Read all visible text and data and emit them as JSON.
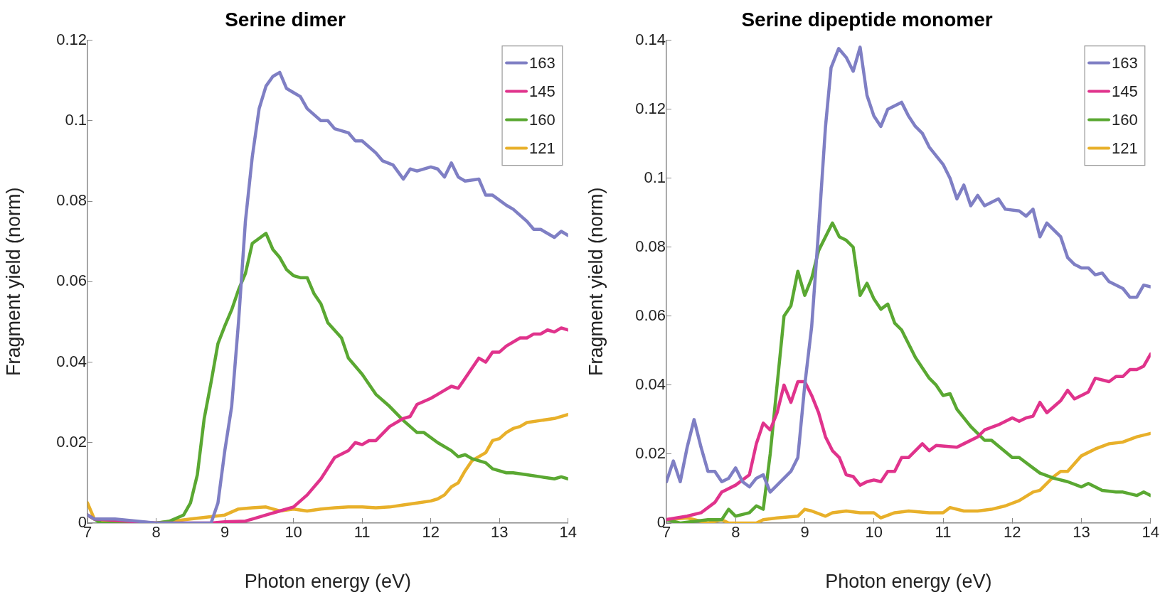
{
  "chart_data": [
    {
      "type": "line",
      "title": "Serine dimer",
      "xlabel": "Photon energy (eV)",
      "ylabel": "Fragment yield (norm)",
      "xlim": [
        7,
        14
      ],
      "xticks": [
        7,
        8,
        9,
        10,
        11,
        12,
        13,
        14
      ],
      "ylim": [
        0,
        0.12
      ],
      "yticks": [
        0,
        0.02,
        0.04,
        0.06,
        0.08,
        0.1,
        0.12
      ],
      "grid": false,
      "legend": "top right",
      "line_style": "solid",
      "series": [
        {
          "name": "163",
          "color": "#7f7fc4",
          "x": [
            7,
            7.1,
            7.4,
            8,
            8.8,
            8.9,
            9.0,
            9.1,
            9.2,
            9.3,
            9.4,
            9.5,
            9.6,
            9.7,
            9.8,
            9.9,
            10.0,
            10.1,
            10.2,
            10.4,
            10.5,
            10.6,
            10.8,
            10.9,
            11.0,
            11.2,
            11.3,
            11.45,
            11.6,
            11.7,
            11.8,
            12.0,
            12.1,
            12.2,
            12.3,
            12.4,
            12.5,
            12.7,
            12.8,
            12.9,
            13.1,
            13.2,
            13.4,
            13.5,
            13.6,
            13.8,
            13.9,
            14.0
          ],
          "values": [
            0.002,
            0.001,
            0.001,
            0,
            0,
            0.005,
            0.018,
            0.029,
            0.05,
            0.075,
            0.091,
            0.103,
            0.1086,
            0.111,
            0.112,
            0.108,
            0.107,
            0.106,
            0.103,
            0.1,
            0.1,
            0.098,
            0.097,
            0.095,
            0.095,
            0.092,
            0.09,
            0.089,
            0.0855,
            0.088,
            0.0875,
            0.0885,
            0.088,
            0.086,
            0.0895,
            0.086,
            0.085,
            0.0855,
            0.0815,
            0.0815,
            0.079,
            0.078,
            0.075,
            0.073,
            0.073,
            0.071,
            0.0725,
            0.0715
          ]
        },
        {
          "name": "145",
          "color": "#e0338c",
          "x": [
            7,
            7.1,
            8,
            8.8,
            9.0,
            9.3,
            9.4,
            9.6,
            9.8,
            10.0,
            10.2,
            10.4,
            10.6,
            10.8,
            10.9,
            11.0,
            11.1,
            11.2,
            11.4,
            11.6,
            11.7,
            11.8,
            12.0,
            12.1,
            12.2,
            12.3,
            12.4,
            12.5,
            12.7,
            12.8,
            12.9,
            13.0,
            13.1,
            13.3,
            13.4,
            13.5,
            13.6,
            13.7,
            13.8,
            13.9,
            14.0
          ],
          "values": [
            0.002,
            0.001,
            0,
            0,
            0.0003,
            0.0005,
            0.001,
            0.002,
            0.003,
            0.004,
            0.007,
            0.011,
            0.0163,
            0.018,
            0.02,
            0.0195,
            0.0205,
            0.0205,
            0.024,
            0.026,
            0.0265,
            0.0295,
            0.031,
            0.032,
            0.033,
            0.034,
            0.0335,
            0.036,
            0.041,
            0.04,
            0.0425,
            0.0425,
            0.044,
            0.046,
            0.046,
            0.047,
            0.047,
            0.048,
            0.0475,
            0.0485,
            0.048
          ]
        },
        {
          "name": "160",
          "color": "#5aa832",
          "x": [
            7,
            7.2,
            8.0,
            8.2,
            8.4,
            8.5,
            8.6,
            8.7,
            8.8,
            8.9,
            9.0,
            9.1,
            9.2,
            9.3,
            9.4,
            9.6,
            9.7,
            9.8,
            9.9,
            10.0,
            10.1,
            10.2,
            10.3,
            10.4,
            10.5,
            10.7,
            10.8,
            11.0,
            11.2,
            11.4,
            11.6,
            11.8,
            11.9,
            12.1,
            12.3,
            12.4,
            12.5,
            12.6,
            12.8,
            12.9,
            13.1,
            13.2,
            13.4,
            13.6,
            13.8,
            13.9,
            14.0
          ],
          "values": [
            0.002,
            0,
            0,
            0.0005,
            0.002,
            0.005,
            0.012,
            0.026,
            0.035,
            0.0446,
            0.049,
            0.053,
            0.058,
            0.062,
            0.0695,
            0.072,
            0.068,
            0.066,
            0.063,
            0.0615,
            0.061,
            0.061,
            0.057,
            0.0545,
            0.0498,
            0.046,
            0.041,
            0.037,
            0.032,
            0.029,
            0.0255,
            0.0225,
            0.0225,
            0.02,
            0.018,
            0.0165,
            0.017,
            0.016,
            0.015,
            0.0135,
            0.0125,
            0.0125,
            0.012,
            0.0115,
            0.011,
            0.0115,
            0.011
          ]
        },
        {
          "name": "121",
          "color": "#e8b02a",
          "x": [
            7,
            7.1,
            7.5,
            8,
            8.5,
            9.0,
            9.2,
            9.4,
            9.6,
            9.8,
            10.0,
            10.2,
            10.4,
            10.6,
            10.8,
            11.0,
            11.2,
            11.4,
            11.6,
            11.8,
            12.0,
            12.1,
            12.2,
            12.3,
            12.4,
            12.5,
            12.6,
            12.8,
            12.9,
            13.0,
            13.1,
            13.2,
            13.3,
            13.4,
            13.6,
            13.8,
            14.0
          ],
          "values": [
            0.005,
            0.001,
            0,
            0,
            0.001,
            0.002,
            0.0035,
            0.0038,
            0.004,
            0.003,
            0.0035,
            0.003,
            0.0035,
            0.0038,
            0.004,
            0.004,
            0.0038,
            0.004,
            0.0045,
            0.005,
            0.0055,
            0.006,
            0.007,
            0.009,
            0.01,
            0.013,
            0.0155,
            0.0175,
            0.0205,
            0.021,
            0.0225,
            0.0235,
            0.024,
            0.025,
            0.0255,
            0.026,
            0.027
          ]
        }
      ]
    },
    {
      "type": "line",
      "title": "Serine dipeptide monomer",
      "xlabel": "Photon energy (eV)",
      "ylabel": "Fragment yield (norm)",
      "xlim": [
        7,
        14
      ],
      "xticks": [
        7,
        8,
        9,
        10,
        11,
        12,
        13,
        14
      ],
      "ylim": [
        0,
        0.14
      ],
      "yticks": [
        0,
        0.02,
        0.04,
        0.06,
        0.08,
        0.1,
        0.12,
        0.14
      ],
      "grid": false,
      "legend": "top right",
      "line_style": "solid",
      "series": [
        {
          "name": "163",
          "color": "#7f7fc4",
          "x": [
            7.0,
            7.1,
            7.2,
            7.3,
            7.4,
            7.5,
            7.6,
            7.7,
            7.8,
            7.9,
            8.0,
            8.1,
            8.2,
            8.3,
            8.4,
            8.5,
            8.6,
            8.7,
            8.8,
            8.9,
            9.0,
            9.1,
            9.2,
            9.3,
            9.38,
            9.49,
            9.6,
            9.7,
            9.8,
            9.9,
            10.0,
            10.1,
            10.2,
            10.4,
            10.5,
            10.6,
            10.7,
            10.8,
            11.0,
            11.1,
            11.2,
            11.3,
            11.4,
            11.5,
            11.6,
            11.8,
            11.9,
            12.1,
            12.2,
            12.3,
            12.4,
            12.5,
            12.7,
            12.8,
            12.9,
            13.0,
            13.1,
            13.2,
            13.3,
            13.4,
            13.6,
            13.7,
            13.8,
            13.9,
            14.0
          ],
          "values": [
            0.012,
            0.018,
            0.012,
            0.022,
            0.03,
            0.022,
            0.015,
            0.015,
            0.012,
            0.013,
            0.016,
            0.012,
            0.0105,
            0.013,
            0.014,
            0.009,
            0.011,
            0.013,
            0.015,
            0.019,
            0.04,
            0.057,
            0.085,
            0.115,
            0.132,
            0.1376,
            0.135,
            0.131,
            0.138,
            0.124,
            0.118,
            0.115,
            0.12,
            0.122,
            0.118,
            0.115,
            0.113,
            0.109,
            0.104,
            0.1,
            0.094,
            0.098,
            0.092,
            0.095,
            0.092,
            0.094,
            0.091,
            0.0905,
            0.089,
            0.091,
            0.083,
            0.087,
            0.083,
            0.077,
            0.075,
            0.074,
            0.074,
            0.072,
            0.0725,
            0.07,
            0.068,
            0.0655,
            0.0655,
            0.069,
            0.0685
          ]
        },
        {
          "name": "145",
          "color": "#e0338c",
          "x": [
            7.0,
            7.3,
            7.5,
            7.7,
            7.8,
            8.0,
            8.2,
            8.3,
            8.4,
            8.5,
            8.6,
            8.7,
            8.8,
            8.9,
            9.0,
            9.1,
            9.2,
            9.3,
            9.4,
            9.5,
            9.6,
            9.7,
            9.8,
            9.9,
            10.0,
            10.1,
            10.2,
            10.3,
            10.4,
            10.5,
            10.6,
            10.7,
            10.8,
            10.9,
            11.2,
            11.3,
            11.5,
            11.6,
            11.8,
            12.0,
            12.1,
            12.2,
            12.3,
            12.4,
            12.5,
            12.7,
            12.8,
            12.9,
            13.1,
            13.2,
            13.4,
            13.5,
            13.6,
            13.7,
            13.8,
            13.9,
            14.0
          ],
          "values": [
            0.001,
            0.002,
            0.003,
            0.006,
            0.009,
            0.011,
            0.014,
            0.023,
            0.029,
            0.027,
            0.032,
            0.04,
            0.035,
            0.041,
            0.041,
            0.037,
            0.032,
            0.025,
            0.021,
            0.019,
            0.014,
            0.0135,
            0.011,
            0.012,
            0.0125,
            0.012,
            0.015,
            0.015,
            0.019,
            0.019,
            0.021,
            0.023,
            0.021,
            0.0225,
            0.022,
            0.023,
            0.025,
            0.027,
            0.0285,
            0.0305,
            0.0295,
            0.0305,
            0.031,
            0.035,
            0.032,
            0.0355,
            0.0385,
            0.036,
            0.038,
            0.042,
            0.041,
            0.0425,
            0.0425,
            0.0445,
            0.0445,
            0.0455,
            0.049
          ]
        },
        {
          "name": "160",
          "color": "#5aa832",
          "x": [
            7.0,
            7.2,
            7.6,
            7.8,
            7.9,
            8.0,
            8.1,
            8.2,
            8.3,
            8.4,
            8.5,
            8.6,
            8.7,
            8.8,
            8.9,
            9.0,
            9.1,
            9.2,
            9.4,
            9.5,
            9.6,
            9.7,
            9.8,
            9.9,
            10.0,
            10.1,
            10.2,
            10.3,
            10.4,
            10.6,
            10.8,
            10.9,
            11.0,
            11.1,
            11.2,
            11.4,
            11.6,
            11.7,
            12.0,
            12.1,
            12.3,
            12.4,
            12.6,
            12.8,
            13.0,
            13.1,
            13.3,
            13.5,
            13.6,
            13.8,
            13.9,
            14.0
          ],
          "values": [
            0.001,
            0,
            0.001,
            0.001,
            0.004,
            0.002,
            0.0025,
            0.003,
            0.005,
            0.004,
            0.02,
            0.04,
            0.06,
            0.063,
            0.073,
            0.066,
            0.071,
            0.079,
            0.087,
            0.083,
            0.082,
            0.08,
            0.066,
            0.0695,
            0.065,
            0.062,
            0.0635,
            0.058,
            0.056,
            0.048,
            0.042,
            0.04,
            0.037,
            0.0375,
            0.033,
            0.028,
            0.024,
            0.024,
            0.019,
            0.019,
            0.016,
            0.0145,
            0.013,
            0.012,
            0.0105,
            0.0115,
            0.0095,
            0.009,
            0.009,
            0.008,
            0.009,
            0.008
          ]
        },
        {
          "name": "121",
          "color": "#e8b02a",
          "x": [
            7.0,
            7.3,
            7.6,
            7.8,
            7.9,
            8.3,
            8.4,
            8.6,
            8.9,
            9.0,
            9.1,
            9.3,
            9.4,
            9.6,
            9.8,
            10.0,
            10.1,
            10.3,
            10.5,
            10.8,
            11.0,
            11.1,
            11.3,
            11.5,
            11.7,
            11.9,
            12.1,
            12.3,
            12.4,
            12.6,
            12.7,
            12.8,
            13.0,
            13.2,
            13.4,
            13.6,
            13.8,
            14.0
          ],
          "values": [
            0.001,
            0.0015,
            0,
            0.001,
            0,
            0,
            0.001,
            0.0015,
            0.002,
            0.004,
            0.0035,
            0.002,
            0.003,
            0.0035,
            0.003,
            0.003,
            0.0015,
            0.003,
            0.0035,
            0.003,
            0.003,
            0.0045,
            0.0035,
            0.0035,
            0.004,
            0.005,
            0.0065,
            0.009,
            0.0095,
            0.0135,
            0.015,
            0.015,
            0.0195,
            0.0215,
            0.023,
            0.0235,
            0.025,
            0.026
          ]
        }
      ]
    }
  ]
}
